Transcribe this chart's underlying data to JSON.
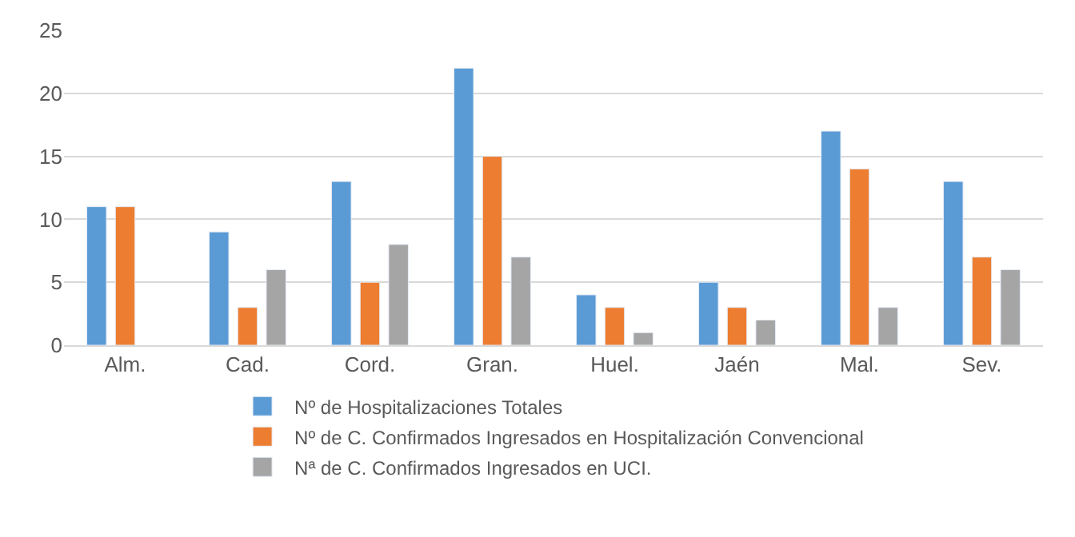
{
  "chart_data": {
    "type": "bar",
    "categories": [
      "Alm.",
      "Cad.",
      "Cord.",
      "Gran.",
      "Huel.",
      "Jaén",
      "Mal.",
      "Sev."
    ],
    "series": [
      {
        "name": "Nº de Hospitalizaciones Totales",
        "color": "#5b9bd5",
        "values": [
          11,
          9,
          13,
          22,
          4,
          5,
          17,
          13
        ]
      },
      {
        "name": "Nº de C. Confirmados Ingresados en Hospitalización Convencional",
        "color": "#ed7d31",
        "values": [
          11,
          3,
          5,
          15,
          3,
          3,
          14,
          7
        ]
      },
      {
        "name": "Nª de C. Confirmados Ingresados en UCI.",
        "color": "#a5a5a5",
        "values": [
          null,
          6,
          8,
          7,
          1,
          2,
          3,
          6
        ]
      }
    ],
    "ylim": [
      0,
      25
    ],
    "yticks": [
      0,
      5,
      10,
      15,
      20,
      25
    ],
    "grid": "y",
    "legend": "bottom"
  }
}
